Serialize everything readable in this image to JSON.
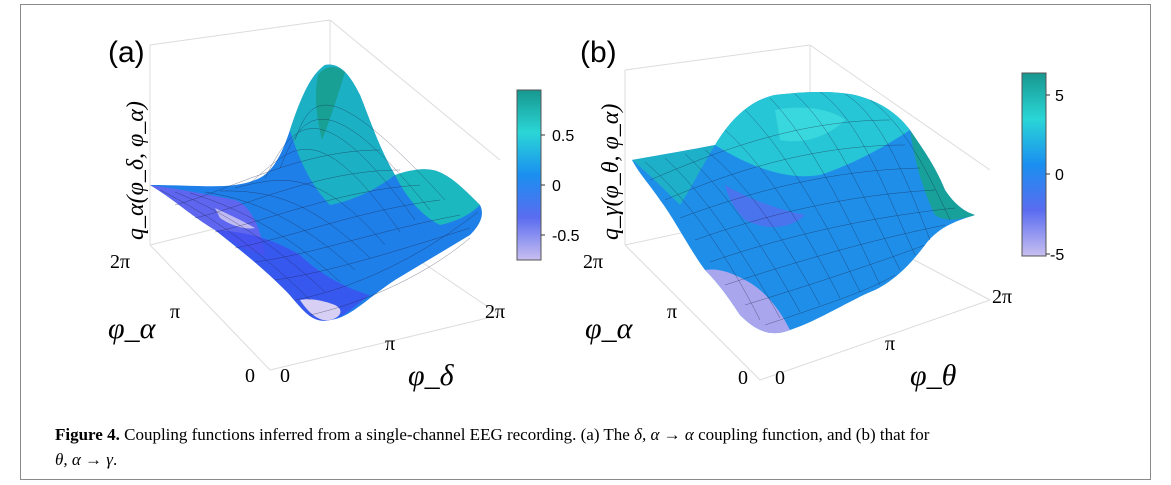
{
  "panels": [
    {
      "letter": "(a)",
      "zlabel": "q_α(φ_δ, φ_α)",
      "xlabel": "φ_δ",
      "ylabel": "φ_α",
      "x_ticks": [
        "0",
        "π",
        "2π"
      ],
      "y_ticks": [
        "0",
        "π",
        "2π"
      ],
      "colorbar_ticks": [
        "0.5",
        "0",
        "-0.5"
      ]
    },
    {
      "letter": "(b)",
      "zlabel": "q_γ(φ_θ, φ_α)",
      "xlabel": "φ_θ",
      "ylabel": "φ_α",
      "x_ticks": [
        "0",
        "π",
        "2π"
      ],
      "y_ticks": [
        "0",
        "π",
        "2π"
      ],
      "colorbar_ticks": [
        "5",
        "0",
        "-5"
      ]
    }
  ],
  "caption": {
    "label": "Figure 4.",
    "text_1": " Coupling functions inferred from a single-channel EEG recording. (a) The ",
    "math_1": "δ, α → α",
    "text_2": " coupling function, and (b) that for",
    "math_2": "θ, α → γ",
    "text_3": "."
  },
  "colors": {
    "colormap": [
      "#c8bff0",
      "#5a6cf0",
      "#1aa8e8",
      "#2ad6d6",
      "#17978f"
    ],
    "frame": "#8a8a8a"
  }
}
